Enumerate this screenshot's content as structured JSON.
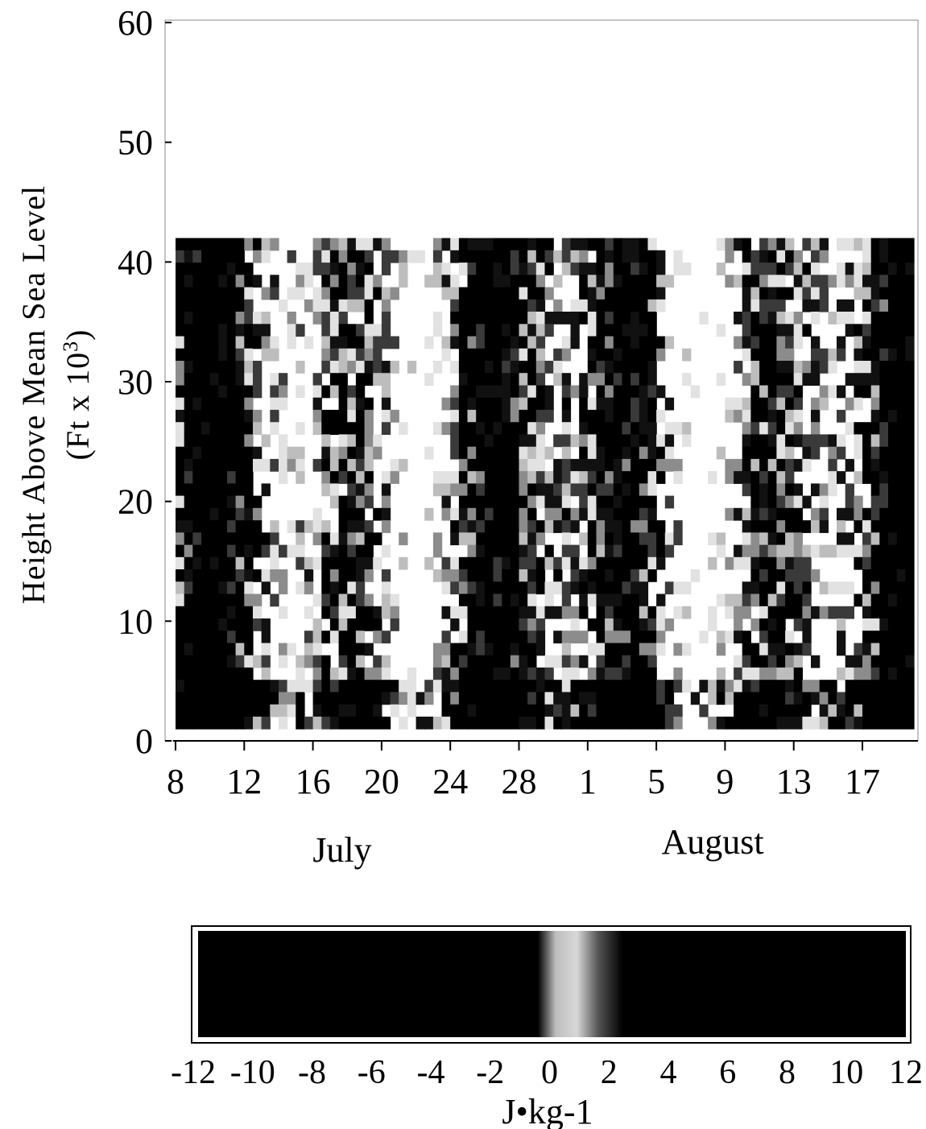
{
  "chart_data": {
    "type": "heatmap",
    "title": "",
    "ylabel_line1": "Height Above Mean Sea Level",
    "ylabel_line2_prefix": "(Ft x 10",
    "ylabel_line2_exp": "3",
    "ylabel_line2_suffix": ")",
    "ylim": [
      0,
      60
    ],
    "yticks": [
      0,
      10,
      20,
      30,
      40,
      50,
      60
    ],
    "xticks": [
      "8",
      "12",
      "16",
      "20",
      "24",
      "28",
      "1",
      "5",
      "9",
      "13",
      "17"
    ],
    "xlim": [
      "July 8",
      "August 20"
    ],
    "month_labels": [
      "July",
      "August"
    ],
    "data_top_ft_x1000": 42,
    "colorbar": {
      "ticks": [
        -12,
        -10,
        -8,
        -6,
        -4,
        -2,
        0,
        2,
        4,
        6,
        8,
        10,
        12
      ],
      "label": "J•kg-1",
      "range": [
        -12,
        12
      ]
    },
    "colors": {
      "strong": "#000000",
      "neutral": "#ffffff",
      "mid": "#9a9a9a"
    }
  }
}
